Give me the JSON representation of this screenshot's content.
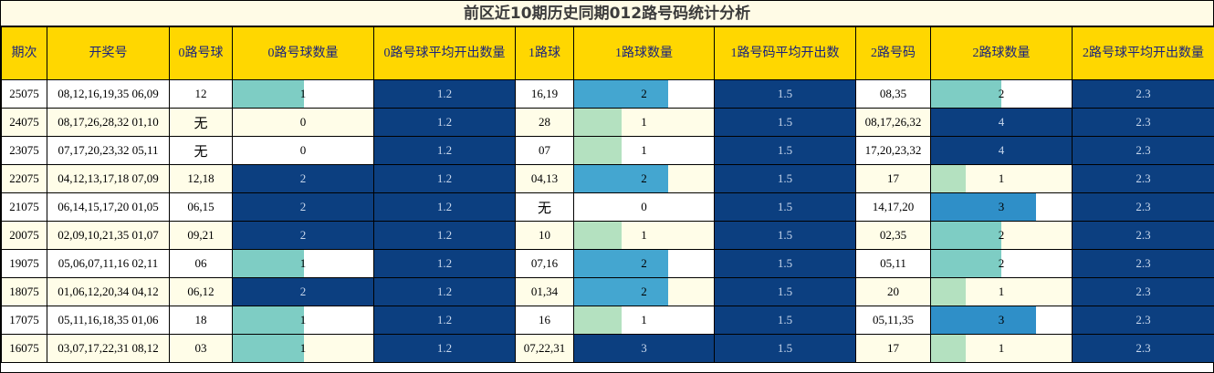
{
  "title": "前区近10期历史同期012路号码统计分析",
  "headers": [
    "期次",
    "开奖号",
    "0路号球",
    "0路号球数量",
    "0路号球平均开出数量",
    "1路球",
    "1路球数量",
    "1路号码平均开出数",
    "2路号码",
    "2路球数量",
    "2路号球平均开出数量"
  ],
  "avg": {
    "r0": "1.2",
    "r1": "1.5",
    "r2": "2.3"
  },
  "colors": {
    "header_bg": "#ffd700",
    "header_text": "#1a237e",
    "avg_bg": "#0c3f80",
    "count_full": "#0c3f80",
    "count_3": "#2f8fc8",
    "count_2_teal": "#7ecdc4",
    "count_2_blue": "#44a6d0",
    "count_1_teal": "#7ecdc4",
    "count_1_green": "#b4e1c0"
  },
  "rows": [
    {
      "period": "25075",
      "draw": "08,12,16,19,35 06,09",
      "r0_nums": "12",
      "r0_count": "1",
      "r1_nums": "16,19",
      "r1_count": "2",
      "r2_nums": "08,35",
      "r2_count": "2"
    },
    {
      "period": "24075",
      "draw": "08,17,26,28,32 01,10",
      "r0_nums": "无",
      "r0_count": "0",
      "r1_nums": "28",
      "r1_count": "1",
      "r2_nums": "08,17,26,32",
      "r2_count": "4"
    },
    {
      "period": "23075",
      "draw": "07,17,20,23,32 05,11",
      "r0_nums": "无",
      "r0_count": "0",
      "r1_nums": "07",
      "r1_count": "1",
      "r2_nums": "17,20,23,32",
      "r2_count": "4"
    },
    {
      "period": "22075",
      "draw": "04,12,13,17,18 07,09",
      "r0_nums": "12,18",
      "r0_count": "2",
      "r1_nums": "04,13",
      "r1_count": "2",
      "r2_nums": "17",
      "r2_count": "1"
    },
    {
      "period": "21075",
      "draw": "06,14,15,17,20 01,05",
      "r0_nums": "06,15",
      "r0_count": "2",
      "r1_nums": "无",
      "r1_count": "0",
      "r2_nums": "14,17,20",
      "r2_count": "3"
    },
    {
      "period": "20075",
      "draw": "02,09,10,21,35 01,07",
      "r0_nums": "09,21",
      "r0_count": "2",
      "r1_nums": "10",
      "r1_count": "1",
      "r2_nums": "02,35",
      "r2_count": "2"
    },
    {
      "period": "19075",
      "draw": "05,06,07,11,16 02,11",
      "r0_nums": "06",
      "r0_count": "1",
      "r1_nums": "07,16",
      "r1_count": "2",
      "r2_nums": "05,11",
      "r2_count": "2"
    },
    {
      "period": "18075",
      "draw": "01,06,12,20,34 04,12",
      "r0_nums": "06,12",
      "r0_count": "2",
      "r1_nums": "01,34",
      "r1_count": "2",
      "r2_nums": "20",
      "r2_count": "1"
    },
    {
      "period": "17075",
      "draw": "05,11,16,18,35 01,06",
      "r0_nums": "18",
      "r0_count": "1",
      "r1_nums": "16",
      "r1_count": "1",
      "r2_nums": "05,11,35",
      "r2_count": "3"
    },
    {
      "period": "16075",
      "draw": "03,07,17,22,31 08,12",
      "r0_nums": "03",
      "r0_count": "1",
      "r1_nums": "07,22,31",
      "r1_count": "3",
      "r2_nums": "17",
      "r2_count": "1"
    }
  ]
}
